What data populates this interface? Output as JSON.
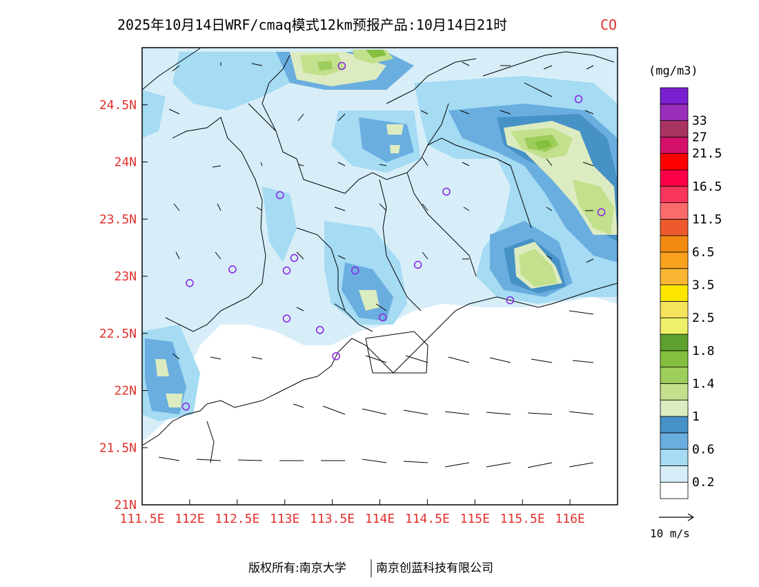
{
  "title": {
    "text": "2025年10月14日WRF/cmaq模式12km预报产品:10月14日21时",
    "species": "CO",
    "species_color": "#e0302c"
  },
  "colorbar": {
    "unit": "(mg/m3)",
    "colors": [
      "#ffffff",
      "#d7eef9",
      "#a5dbf3",
      "#6aaee0",
      "#4691c6",
      "#dcecc0",
      "#c3e08c",
      "#9dcd5a",
      "#84c03e",
      "#5fa12e",
      "#eef06a",
      "#f6e55c",
      "#fce600",
      "#f9b633",
      "#f9a21e",
      "#f28a12",
      "#ef5a2c",
      "#fb6b6b",
      "#f8365b",
      "#ff0048",
      "#ff0000",
      "#d4106b",
      "#a83260",
      "#9b2fbd",
      "#7a1fcf"
    ],
    "labels": [
      {
        "text": "0.2",
        "after": 1
      },
      {
        "text": "0.6",
        "after": 3
      },
      {
        "text": "1",
        "after": 5
      },
      {
        "text": "1.4",
        "after": 7
      },
      {
        "text": "1.8",
        "after": 9
      },
      {
        "text": "2.5",
        "after": 11
      },
      {
        "text": "3.5",
        "after": 13
      },
      {
        "text": "6.5",
        "after": 15
      },
      {
        "text": "11.5",
        "after": 17
      },
      {
        "text": "16.5",
        "after": 19
      },
      {
        "text": "21.5",
        "after": 21
      },
      {
        "text": "27",
        "after": 22
      },
      {
        "text": "33",
        "after": 23
      }
    ]
  },
  "axes": {
    "x_ticks": [
      "111.5E",
      "112E",
      "112.5E",
      "113E",
      "113.5E",
      "114E",
      "114.5E",
      "115E",
      "115.5E",
      "116E"
    ],
    "x_values": [
      111.5,
      112,
      112.5,
      113,
      113.5,
      114,
      114.5,
      115,
      115.5,
      116
    ],
    "y_ticks": [
      "21N",
      "21.5N",
      "22N",
      "22.5N",
      "23N",
      "23.5N",
      "24N",
      "24.5N"
    ],
    "y_values": [
      21,
      21.5,
      22,
      22.5,
      23,
      23.5,
      24,
      24.5
    ],
    "x_range": [
      111.5,
      116.5
    ],
    "y_range": [
      21,
      25
    ],
    "tick_color": "#e0302c"
  },
  "wind_legend": {
    "label": "10 m/s"
  },
  "stations": [
    [
      113.6,
      24.84
    ],
    [
      116.09,
      24.55
    ],
    [
      112.95,
      23.71
    ],
    [
      114.7,
      23.74
    ],
    [
      116.33,
      23.56
    ],
    [
      112.45,
      23.06
    ],
    [
      113.1,
      23.16
    ],
    [
      113.02,
      23.05
    ],
    [
      113.74,
      23.05
    ],
    [
      114.4,
      23.1
    ],
    [
      112.0,
      22.94
    ],
    [
      113.02,
      22.63
    ],
    [
      113.37,
      22.53
    ],
    [
      114.03,
      22.64
    ],
    [
      115.37,
      22.79
    ],
    [
      113.54,
      22.3
    ],
    [
      111.96,
      21.86
    ]
  ],
  "footer": {
    "left": "版权所有:南京大学",
    "right": "南京创蓝科技有限公司"
  }
}
